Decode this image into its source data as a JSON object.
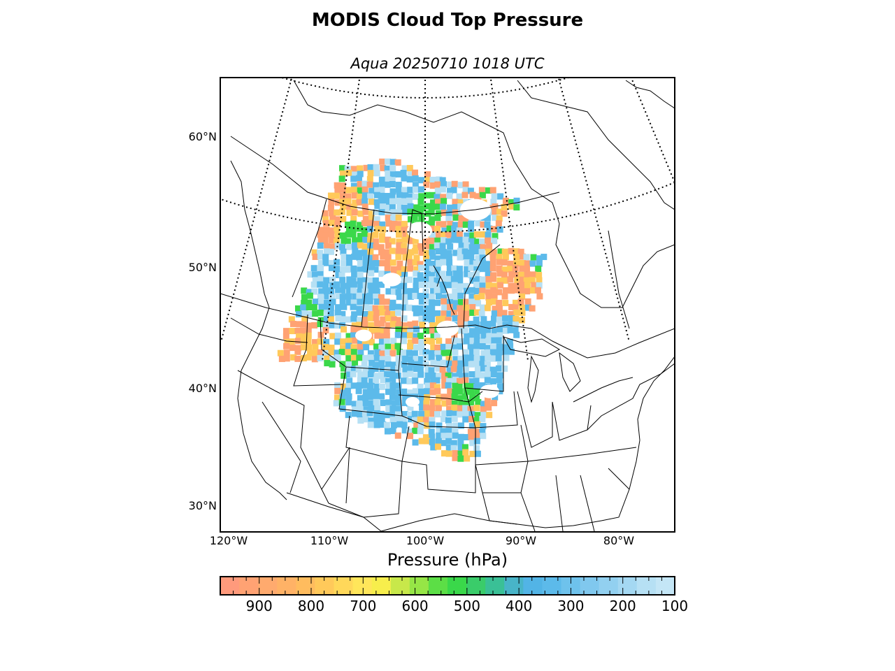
{
  "title": "MODIS Cloud Top Pressure",
  "subtitle": "Aqua 20250710 1018 UTC",
  "lat_labels": [
    {
      "text": "60°N",
      "lat": 60
    },
    {
      "text": "50°N",
      "lat": 50
    },
    {
      "text": "40°N",
      "lat": 40
    },
    {
      "text": "30°N",
      "lat": 30
    }
  ],
  "lon_labels": [
    {
      "text": "120°W",
      "lon": -120
    },
    {
      "text": "110°W",
      "lon": -110
    },
    {
      "text": "100°W",
      "lon": -100
    },
    {
      "text": "90°W",
      "lon": -90
    },
    {
      "text": "80°W",
      "lon": -80
    }
  ],
  "colorbar": {
    "title": "Pressure (hPa)",
    "range": [
      975,
      100
    ],
    "ticks": [
      "900",
      "800",
      "700",
      "600",
      "500",
      "400",
      "300",
      "200",
      "100"
    ],
    "tick_values": [
      900,
      800,
      700,
      600,
      500,
      400,
      300,
      200,
      100
    ],
    "colors": [
      "#ff9a7c",
      "#ffa273",
      "#ffaa6e",
      "#ffb266",
      "#ffbc5e",
      "#ffc95a",
      "#ffd85a",
      "#ffe65a",
      "#f7ee4c",
      "#c8e84a",
      "#96e646",
      "#5cde46",
      "#3ad84a",
      "#3acc6a",
      "#3ac096",
      "#48b4c8",
      "#52b4e6",
      "#5cbaea",
      "#6ec2ec",
      "#80c8ee",
      "#92d0f0",
      "#a4d8f2",
      "#b6e0f4",
      "#c4e6f6"
    ]
  },
  "legend_colors": {
    "low_cloud": "#ffa273",
    "mid_low_cloud": "#ffc95a",
    "mid_cloud": "#3ad84a",
    "high_cloud": "#5cbaea",
    "very_high_cloud": "#b6e0f4"
  }
}
